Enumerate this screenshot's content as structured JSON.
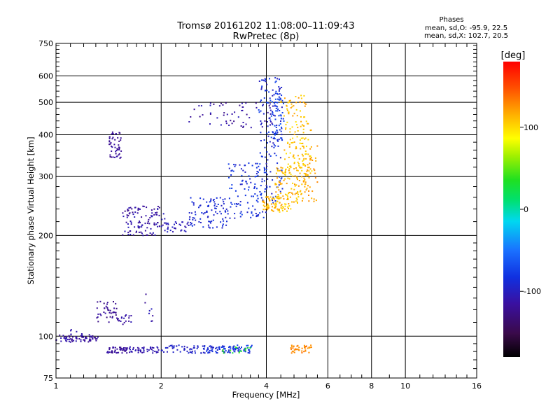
{
  "chart_data": {
    "type": "scatter",
    "title": "Tromsø 20161202 11:08:00–11:09:43",
    "subtitle": "RwPretec (8p)",
    "stats": {
      "heading": "Phases",
      "line1": "mean, sd,O: -95.9, 22.5",
      "line2": "mean, sd,X: 102.7, 20.5"
    },
    "xlabel": "Frequency [MHz]",
    "ylabel": "Stationary phase Virtual Height [km]",
    "x_scale": "log",
    "y_scale": "log",
    "xlim": [
      1,
      16
    ],
    "ylim": [
      75,
      750
    ],
    "x_ticks": [
      {
        "value": 1,
        "label": "1"
      },
      {
        "value": 2,
        "label": "2"
      },
      {
        "value": 4,
        "label": "4"
      },
      {
        "value": 6,
        "label": "6"
      },
      {
        "value": 8,
        "label": "8"
      },
      {
        "value": 10,
        "label": "10"
      },
      {
        "value": 16,
        "label": "16"
      }
    ],
    "y_ticks": [
      {
        "value": 75,
        "label": "75"
      },
      {
        "value": 100,
        "label": "100"
      },
      {
        "value": 200,
        "label": "200"
      },
      {
        "value": 300,
        "label": "300"
      },
      {
        "value": 400,
        "label": "400"
      },
      {
        "value": 500,
        "label": "500"
      },
      {
        "value": 600,
        "label": "600"
      },
      {
        "value": 750,
        "label": "750"
      }
    ],
    "x_minor_ticks": [
      1.1,
      1.2,
      1.3,
      1.4,
      1.5,
      1.6,
      1.7,
      1.8,
      1.9,
      2.2,
      2.4,
      2.6,
      2.8,
      3,
      3.2,
      3.4,
      3.6,
      3.8,
      4.4,
      4.8,
      5.2,
      5.6,
      6.5,
      7,
      7.5,
      9,
      11,
      12,
      13,
      14,
      15
    ],
    "y_minor_ticks": [
      80,
      85,
      90,
      95,
      110,
      120,
      130,
      140,
      150,
      160,
      170,
      180,
      190,
      220,
      240,
      260,
      280,
      320,
      340,
      360,
      380,
      420,
      440,
      460,
      480,
      520,
      540,
      560,
      580,
      620,
      640,
      660,
      680,
      700,
      720,
      740
    ],
    "grid": true,
    "colorbar": {
      "unit": "[deg]",
      "min": -180,
      "max": 180,
      "ticks": [
        {
          "value": 100,
          "label": "100"
        },
        {
          "value": 0,
          "label": "0"
        },
        {
          "value": -100,
          "label": "-100"
        }
      ]
    },
    "series": [
      {
        "label": "O",
        "phase_mean": -95.9,
        "phase_sd": 22.5,
        "clusters": [
          {
            "x": [
              1.0,
              1.32
            ],
            "y": [
              96,
              101
            ],
            "n": 70,
            "phase": [
              -125,
              -105
            ]
          },
          {
            "x": [
              1.4,
              1.6
            ],
            "y": [
              89,
              93
            ],
            "n": 50,
            "phase": [
              -125,
              -110
            ]
          },
          {
            "x": [
              1.62,
              1.98
            ],
            "y": [
              89,
              93
            ],
            "n": 45,
            "phase": [
              -115,
              -100
            ]
          },
          {
            "x": [
              2.0,
              2.55
            ],
            "y": [
              89,
              94
            ],
            "n": 45,
            "phase": [
              -105,
              -90
            ]
          },
          {
            "x": [
              2.6,
              3.2
            ],
            "y": [
              89,
              94
            ],
            "n": 60,
            "phase": [
              -100,
              -75
            ]
          },
          {
            "x": [
              3.2,
              3.65
            ],
            "y": [
              89,
              94
            ],
            "n": 40,
            "phase": [
              -95,
              -70
            ]
          },
          {
            "x": [
              1.3,
              1.5
            ],
            "y": [
              110,
              128
            ],
            "n": 40,
            "phase": [
              -130,
              -110
            ]
          },
          {
            "x": [
              1.5,
              1.65
            ],
            "y": [
              108,
              116
            ],
            "n": 20,
            "phase": [
              -120,
              -105
            ]
          },
          {
            "x": [
              1.42,
              1.54
            ],
            "y": [
              340,
              410
            ],
            "n": 50,
            "phase": [
              -125,
              -110
            ]
          },
          {
            "x": [
              1.55,
              2.05
            ],
            "y": [
              200,
              245
            ],
            "n": 110,
            "phase": [
              -125,
              -100
            ]
          },
          {
            "x": [
              2.05,
              2.4
            ],
            "y": [
              205,
              220
            ],
            "n": 30,
            "phase": [
              -110,
              -95
            ]
          },
          {
            "x": [
              2.4,
              3.1
            ],
            "y": [
              210,
              260
            ],
            "n": 90,
            "phase": [
              -100,
              -80
            ]
          },
          {
            "x": [
              3.1,
              4.0
            ],
            "y": [
              225,
              330
            ],
            "n": 110,
            "phase": [
              -100,
              -70
            ]
          },
          {
            "x": [
              3.8,
              4.45
            ],
            "y": [
              250,
              600
            ],
            "n": 140,
            "phase": [
              -105,
              -70
            ]
          },
          {
            "x": [
              2.4,
              4.2
            ],
            "y": [
              420,
              500
            ],
            "n": 60,
            "phase": [
              -125,
              -100
            ]
          },
          {
            "x": [
              4.1,
              4.5
            ],
            "y": [
              380,
              520
            ],
            "n": 50,
            "phase": [
              -90,
              -60
            ]
          },
          {
            "x": [
              1.8,
              1.9
            ],
            "y": [
              110,
              135
            ],
            "n": 8,
            "phase": [
              -120,
              -100
            ]
          },
          {
            "x": [
              1.1,
              1.2
            ],
            "y": [
              100,
              105
            ],
            "n": 6,
            "phase": [
              -110,
              -90
            ]
          }
        ]
      },
      {
        "label": "X",
        "phase_mean": 102.7,
        "phase_sd": 20.5,
        "clusters": [
          {
            "x": [
              3.9,
              4.7
            ],
            "y": [
              235,
              262
            ],
            "n": 80,
            "phase": [
              95,
              125
            ]
          },
          {
            "x": [
              4.2,
              5.2
            ],
            "y": [
              250,
              320
            ],
            "n": 100,
            "phase": [
              100,
              125
            ]
          },
          {
            "x": [
              4.5,
              5.4
            ],
            "y": [
              300,
              440
            ],
            "n": 120,
            "phase": [
              95,
              120
            ]
          },
          {
            "x": [
              4.4,
              5.2
            ],
            "y": [
              450,
              530
            ],
            "n": 40,
            "phase": [
              100,
              125
            ]
          },
          {
            "x": [
              5.2,
              5.6
            ],
            "y": [
              250,
              380
            ],
            "n": 30,
            "phase": [
              110,
              130
            ]
          },
          {
            "x": [
              4.7,
              5.4
            ],
            "y": [
              89,
              94
            ],
            "n": 40,
            "phase": [
              120,
              140
            ]
          },
          {
            "x": [
              3.0,
              3.7
            ],
            "y": [
              89,
              93
            ],
            "n": 15,
            "phase": [
              20,
              50
            ]
          }
        ]
      }
    ]
  }
}
